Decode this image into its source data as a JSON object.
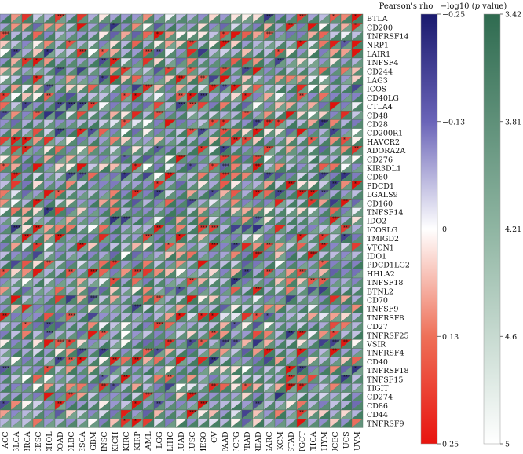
{
  "chart_data": {
    "type": "heatmap",
    "description": "Split-cell heatmap: each cell divided diagonally; upper-left triangle colored by Pearson's rho, lower-right triangle colored by -log10(p value); asterisks mark significance.",
    "x_categories": [
      "ACC",
      "BLCA",
      "BRCA",
      "CESC",
      "CHOL",
      "COAD",
      "DLBC",
      "ESCA",
      "GBM",
      "HNSC",
      "KICH",
      "KIRC",
      "KIRP",
      "LAML",
      "LGG",
      "LIHC",
      "LUAD",
      "LUSC",
      "MESO",
      "OV",
      "PAAD",
      "PCPG",
      "PRAD",
      "READ",
      "SARC",
      "SKCM",
      "STAD",
      "TGCT",
      "THCA",
      "THYM",
      "UCEC",
      "UCS",
      "UVM"
    ],
    "y_categories": [
      "BTLA",
      "CD200",
      "TNFRSF14",
      "NRP1",
      "LAIR1",
      "TNFSF4",
      "CD244",
      "LAG3",
      "ICOS",
      "CD40LG",
      "CTLA4",
      "CD48",
      "CD28",
      "CD200R1",
      "HAVCR2",
      "ADORA2A",
      "CD276",
      "KIR3DL1",
      "CD80",
      "PDCD1",
      "LGALS9",
      "CD160",
      "TNFSF14",
      "IDO2",
      "ICOSLG",
      "TMIGD2",
      "VTCN1",
      "IDO1",
      "PDCD1LG2",
      "HHLA2",
      "TNFSF18",
      "BTNL2",
      "CD70",
      "TNFSF9",
      "TNFRSF8",
      "CD27",
      "TNFRSF25",
      "VSIR",
      "TNFRSF4",
      "CD40",
      "TNFRSF18",
      "TNFSF15",
      "TIGIT",
      "CD274",
      "CD86",
      "CD44",
      "TNFRSF9"
    ],
    "rho_legend": {
      "title": "Pearson's rho",
      "ticks": [
        "−0.25",
        "−0.13",
        "0",
        "0.13",
        "0.25"
      ],
      "range": [
        -0.25,
        0.25
      ],
      "colors": {
        "min": "#1a1a6e",
        "mid": "#ffffff",
        "max": "#e8140f"
      }
    },
    "p_legend": {
      "title_prefix": "−log10 (",
      "title_italic": "p",
      "title_suffix": " value)",
      "ticks": [
        "3.42",
        "3.81",
        "4.21",
        "4.6",
        "5"
      ],
      "colors": {
        "top": "#2f6b50",
        "bottom": "#ffffff"
      }
    },
    "asterisk_symbol": "*"
  }
}
